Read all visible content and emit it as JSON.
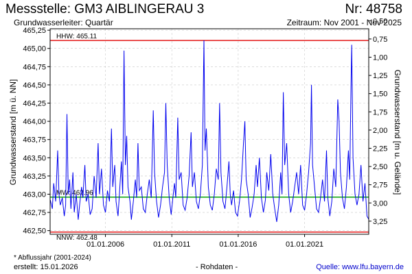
{
  "header": {
    "title": "Messstelle: GM3 AIBLINGERAU 3",
    "number": "Nr: 48758",
    "aquifer": "Grundwasserleiter: Quartär",
    "period": "Zeitraum: Nov 2001 - Nov 2025"
  },
  "footer": {
    "footnote": "* Abflussjahr (2001-2024)",
    "created": "erstellt:  15.01.2026",
    "raw": "- Rohdaten -",
    "source": "Quelle: www.lfu.bayern.de"
  },
  "colors": {
    "series": "#0000ee",
    "hhw": "#e00000",
    "nnw": "#e00000",
    "mw": "#00a000",
    "grid": "#c8c8c8"
  },
  "chart_data": {
    "type": "line",
    "ylabel": "Grundwasserstand [m ü. NN]",
    "ylabel_right": "Grundwasserstand [m u. Gelände]",
    "xlim": [
      "2001-11-01",
      "2025-11-01"
    ],
    "ylim": [
      462.45,
      465.27
    ],
    "ylim_right_top": 0.61,
    "y_ticks": [
      "465,25",
      "465,00",
      "464,75",
      "464,50",
      "464,25",
      "464,00",
      "463,75",
      "463,50",
      "463,25",
      "463,00",
      "462,75",
      "462,50"
    ],
    "y_tick_values": [
      465.25,
      465.0,
      464.75,
      464.5,
      464.25,
      464.0,
      463.75,
      463.5,
      463.25,
      463.0,
      462.75,
      462.5
    ],
    "y_ticks_right": [
      "0,50",
      "0,75",
      "1,00",
      "1,25",
      "1,50",
      "1,75",
      "2,00",
      "2,25",
      "2,50",
      "2,75",
      "3,00",
      "3,25"
    ],
    "y_tick_values_right": [
      0.5,
      0.75,
      1.0,
      1.25,
      1.5,
      1.75,
      2.0,
      2.25,
      2.5,
      2.75,
      3.0,
      3.25
    ],
    "x_ticks": [
      "01.01.2006",
      "01.01.2011",
      "01.01.2016",
      "01.01.2021"
    ],
    "x_tick_values": [
      2006.0,
      2011.0,
      2016.0,
      2021.0
    ],
    "grid": true,
    "reference_lines": [
      {
        "name": "HHW",
        "label": "HHW: 465.11",
        "value": 465.11
      },
      {
        "name": "MW",
        "label": "MW: 462.96",
        "value": 462.96
      },
      {
        "name": "NNW",
        "label": "NNW: 462.48",
        "value": 462.48
      }
    ],
    "series": [
      {
        "values": [
          [
            2001.85,
            462.92
          ],
          [
            2002.0,
            462.8
          ],
          [
            2002.1,
            463.15
          ],
          [
            2002.25,
            462.9
          ],
          [
            2002.4,
            463.6
          ],
          [
            2002.5,
            463.0
          ],
          [
            2002.6,
            462.85
          ],
          [
            2002.75,
            462.95
          ],
          [
            2002.9,
            462.7
          ],
          [
            2003.0,
            462.85
          ],
          [
            2003.1,
            464.1
          ],
          [
            2003.2,
            463.0
          ],
          [
            2003.3,
            463.2
          ],
          [
            2003.4,
            462.8
          ],
          [
            2003.55,
            463.3
          ],
          [
            2003.65,
            462.75
          ],
          [
            2003.8,
            463.0
          ],
          [
            2003.95,
            462.65
          ],
          [
            2004.05,
            462.85
          ],
          [
            2004.2,
            463.1
          ],
          [
            2004.3,
            462.95
          ],
          [
            2004.45,
            463.4
          ],
          [
            2004.55,
            462.9
          ],
          [
            2004.7,
            463.0
          ],
          [
            2004.85,
            462.72
          ],
          [
            2005.0,
            462.8
          ],
          [
            2005.15,
            463.25
          ],
          [
            2005.3,
            462.95
          ],
          [
            2005.45,
            463.7
          ],
          [
            2005.55,
            463.0
          ],
          [
            2005.7,
            463.35
          ],
          [
            2005.85,
            462.85
          ],
          [
            2006.0,
            462.75
          ],
          [
            2006.15,
            463.05
          ],
          [
            2006.3,
            462.9
          ],
          [
            2006.45,
            463.9
          ],
          [
            2006.55,
            463.1
          ],
          [
            2006.7,
            463.4
          ],
          [
            2006.8,
            462.9
          ],
          [
            2006.95,
            462.7
          ],
          [
            2007.05,
            463.0
          ],
          [
            2007.2,
            463.45
          ],
          [
            2007.3,
            463.0
          ],
          [
            2007.4,
            464.97
          ],
          [
            2007.5,
            463.4
          ],
          [
            2007.6,
            463.8
          ],
          [
            2007.7,
            463.1
          ],
          [
            2007.85,
            462.9
          ],
          [
            2007.95,
            462.65
          ],
          [
            2008.1,
            462.9
          ],
          [
            2008.25,
            463.2
          ],
          [
            2008.35,
            462.95
          ],
          [
            2008.45,
            463.7
          ],
          [
            2008.55,
            463.05
          ],
          [
            2008.7,
            463.1
          ],
          [
            2008.85,
            462.8
          ],
          [
            2009.0,
            462.75
          ],
          [
            2009.15,
            463.0
          ],
          [
            2009.3,
            463.2
          ],
          [
            2009.45,
            462.95
          ],
          [
            2009.6,
            464.15
          ],
          [
            2009.7,
            463.3
          ],
          [
            2009.85,
            462.9
          ],
          [
            2010.0,
            462.68
          ],
          [
            2010.15,
            462.85
          ],
          [
            2010.3,
            463.1
          ],
          [
            2010.45,
            463.3
          ],
          [
            2010.55,
            464.25
          ],
          [
            2010.65,
            463.4
          ],
          [
            2010.8,
            462.95
          ],
          [
            2010.95,
            462.72
          ],
          [
            2011.05,
            462.9
          ],
          [
            2011.2,
            463.15
          ],
          [
            2011.3,
            462.95
          ],
          [
            2011.45,
            464.05
          ],
          [
            2011.55,
            463.2
          ],
          [
            2011.7,
            463.3
          ],
          [
            2011.85,
            462.85
          ],
          [
            2012.0,
            462.78
          ],
          [
            2012.15,
            462.95
          ],
          [
            2012.3,
            463.25
          ],
          [
            2012.45,
            463.85
          ],
          [
            2012.55,
            463.1
          ],
          [
            2012.7,
            463.3
          ],
          [
            2012.85,
            462.9
          ],
          [
            2013.0,
            462.8
          ],
          [
            2013.15,
            463.0
          ],
          [
            2013.3,
            463.4
          ],
          [
            2013.42,
            465.11
          ],
          [
            2013.5,
            463.6
          ],
          [
            2013.6,
            463.9
          ],
          [
            2013.75,
            463.1
          ],
          [
            2013.9,
            462.85
          ],
          [
            2014.05,
            462.78
          ],
          [
            2014.2,
            463.0
          ],
          [
            2014.35,
            463.35
          ],
          [
            2014.5,
            463.2
          ],
          [
            2014.6,
            464.25
          ],
          [
            2014.7,
            463.3
          ],
          [
            2014.85,
            462.9
          ],
          [
            2015.0,
            462.8
          ],
          [
            2015.15,
            463.1
          ],
          [
            2015.3,
            463.45
          ],
          [
            2015.4,
            463.0
          ],
          [
            2015.5,
            462.85
          ],
          [
            2015.65,
            463.05
          ],
          [
            2015.8,
            462.75
          ],
          [
            2015.95,
            462.7
          ],
          [
            2016.1,
            462.9
          ],
          [
            2016.25,
            463.2
          ],
          [
            2016.4,
            463.7
          ],
          [
            2016.5,
            464.0
          ],
          [
            2016.6,
            463.2
          ],
          [
            2016.75,
            463.0
          ],
          [
            2016.9,
            462.68
          ],
          [
            2017.05,
            462.82
          ],
          [
            2017.2,
            463.0
          ],
          [
            2017.35,
            463.4
          ],
          [
            2017.45,
            463.1
          ],
          [
            2017.6,
            463.5
          ],
          [
            2017.75,
            462.95
          ],
          [
            2017.9,
            462.75
          ],
          [
            2018.05,
            462.92
          ],
          [
            2018.15,
            463.3
          ],
          [
            2018.3,
            463.05
          ],
          [
            2018.45,
            463.55
          ],
          [
            2018.6,
            463.0
          ],
          [
            2018.75,
            462.8
          ],
          [
            2018.9,
            462.62
          ],
          [
            2019.05,
            462.85
          ],
          [
            2019.2,
            463.3
          ],
          [
            2019.3,
            463.0
          ],
          [
            2019.4,
            464.4
          ],
          [
            2019.5,
            463.4
          ],
          [
            2019.65,
            463.7
          ],
          [
            2019.8,
            463.0
          ],
          [
            2019.95,
            462.75
          ],
          [
            2020.1,
            462.9
          ],
          [
            2020.25,
            463.1
          ],
          [
            2020.4,
            463.3
          ],
          [
            2020.55,
            463.0
          ],
          [
            2020.7,
            463.4
          ],
          [
            2020.85,
            462.85
          ],
          [
            2021.0,
            462.78
          ],
          [
            2021.15,
            463.0
          ],
          [
            2021.3,
            463.3
          ],
          [
            2021.45,
            463.7
          ],
          [
            2021.52,
            464.5
          ],
          [
            2021.6,
            463.4
          ],
          [
            2021.75,
            463.1
          ],
          [
            2021.9,
            462.8
          ],
          [
            2022.05,
            462.75
          ],
          [
            2022.2,
            462.95
          ],
          [
            2022.35,
            463.2
          ],
          [
            2022.5,
            462.9
          ],
          [
            2022.65,
            463.6
          ],
          [
            2022.75,
            462.95
          ],
          [
            2022.9,
            462.7
          ],
          [
            2023.05,
            462.9
          ],
          [
            2023.2,
            463.35
          ],
          [
            2023.35,
            463.1
          ],
          [
            2023.5,
            464.3
          ],
          [
            2023.6,
            464.0
          ],
          [
            2023.7,
            463.3
          ],
          [
            2023.85,
            462.95
          ],
          [
            2024.0,
            462.8
          ],
          [
            2024.15,
            463.1
          ],
          [
            2024.3,
            463.6
          ],
          [
            2024.4,
            463.2
          ],
          [
            2024.5,
            464.5
          ],
          [
            2024.55,
            465.05
          ],
          [
            2024.65,
            463.5
          ],
          [
            2024.8,
            463.0
          ],
          [
            2024.95,
            462.85
          ],
          [
            2025.1,
            463.0
          ],
          [
            2025.25,
            463.4
          ],
          [
            2025.4,
            462.9
          ],
          [
            2025.55,
            463.15
          ],
          [
            2025.7,
            462.7
          ],
          [
            2025.85,
            462.65
          ]
        ]
      }
    ]
  }
}
